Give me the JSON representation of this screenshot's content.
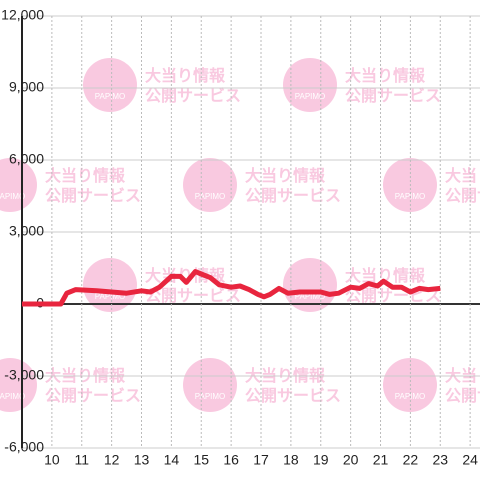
{
  "chart_data": {
    "type": "line",
    "x": [
      9,
      10.3,
      10.5,
      10.8,
      11.5,
      12,
      12.5,
      13,
      13.3,
      13.6,
      14,
      14.3,
      14.5,
      14.8,
      15,
      15.3,
      15.6,
      16,
      16.3,
      16.6,
      16.9,
      17.1,
      17.3,
      17.6,
      17.9,
      18.3,
      19,
      19.3,
      19.6,
      20,
      20.3,
      20.6,
      20.9,
      21.1,
      21.4,
      21.7,
      22,
      22.3,
      22.6,
      23
    ],
    "series": [
      {
        "color": "#e8253e",
        "values": [
          0,
          0,
          450,
          600,
          550,
          500,
          450,
          550,
          500,
          700,
          1150,
          1150,
          900,
          1350,
          1250,
          1100,
          800,
          700,
          750,
          600,
          400,
          300,
          400,
          650,
          450,
          500,
          500,
          400,
          450,
          700,
          650,
          850,
          750,
          950,
          700,
          700,
          500,
          650,
          600,
          650
        ]
      }
    ],
    "xlim": [
      9,
      24.33
    ],
    "xticks": [
      10,
      11,
      12,
      13,
      14,
      15,
      16,
      17,
      18,
      19,
      20,
      21,
      22,
      23,
      24
    ],
    "ylim": [
      -6000,
      12000
    ],
    "yticks": [
      {
        "value": -6000,
        "label": "-6,000"
      },
      {
        "value": -3000,
        "label": "-3,000"
      },
      0,
      {
        "value": 3000,
        "label": "3,000"
      },
      {
        "value": 6000,
        "label": "6,000"
      },
      {
        "value": 9000,
        "label": "9,000"
      },
      {
        "value": 12000,
        "label": "12,000"
      }
    ],
    "grid": true,
    "watermark": {
      "logo": "PAPIMO",
      "line1": "大当り情報",
      "line2": "公開サービス",
      "color": "#f9c9e0"
    }
  }
}
